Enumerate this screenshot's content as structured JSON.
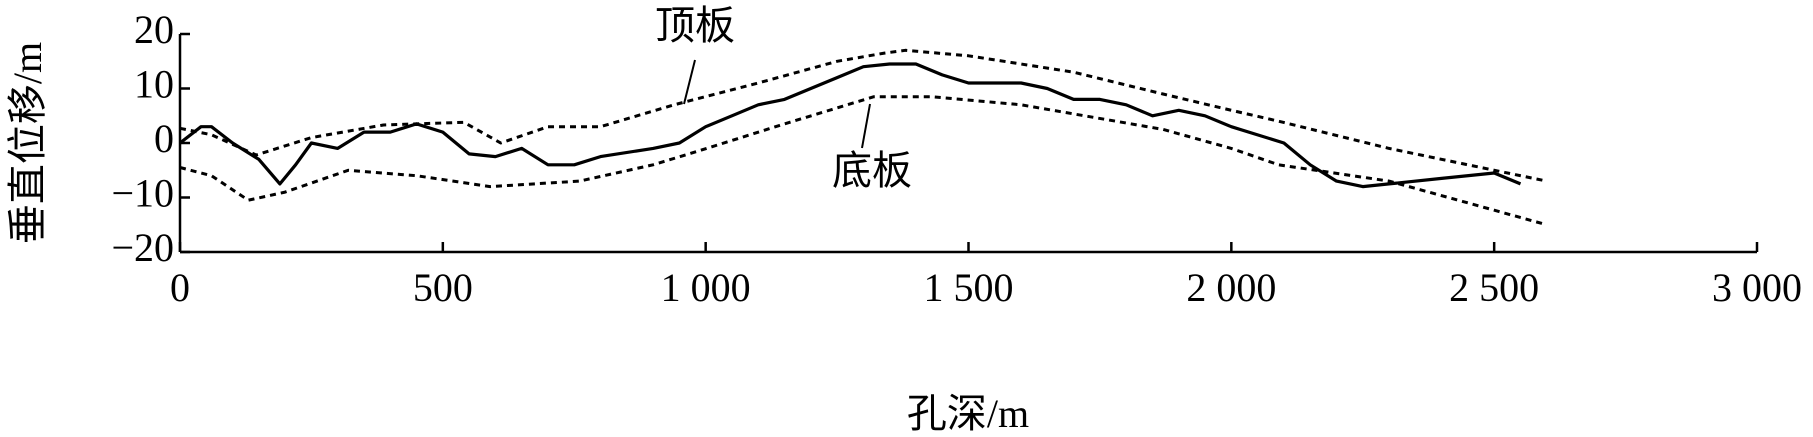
{
  "chart_data": {
    "type": "line",
    "xlabel": "孔深/m",
    "ylabel": "垂直位移/m",
    "xlim": [
      0,
      3000
    ],
    "xticks": [
      0,
      500,
      {
        "value": 1000,
        "label": "1 000"
      },
      {
        "value": 1500,
        "label": "1 500"
      },
      {
        "value": 2000,
        "label": "2 000"
      },
      {
        "value": 2500,
        "label": "2 500"
      },
      {
        "value": 3000,
        "label": "3 000"
      }
    ],
    "ylim": [
      -20,
      20
    ],
    "yticks": [
      {
        "value": -20,
        "label": "−20"
      },
      {
        "value": -10,
        "label": "−10"
      },
      0,
      10,
      20
    ],
    "series": [
      {
        "name": "顶板",
        "color": "#000000",
        "dashed": true,
        "x": [
          0,
          60,
          145,
          250,
          387,
          540,
          610,
          700,
          800,
          940,
          1100,
          1250,
          1340,
          1380,
          1500,
          1700,
          1870,
          2000,
          2090,
          2300,
          2450,
          2600
        ],
        "values": [
          2.7,
          1.5,
          -2.2,
          1,
          3.3,
          3.8,
          0,
          3,
          3,
          7,
          11,
          15,
          16.5,
          17,
          16,
          13,
          9,
          6,
          4,
          -1,
          -4,
          -7
        ]
      },
      {
        "name": "底板",
        "color": "#000000",
        "dashed": true,
        "x": [
          0,
          60,
          130,
          200,
          320,
          450,
          590,
          760,
          900,
          985,
          1150,
          1320,
          1430,
          1600,
          1870,
          2000,
          2090,
          2300,
          2450,
          2600
        ],
        "values": [
          -4.5,
          -6,
          -10.5,
          -9,
          -5,
          -6,
          -8,
          -7,
          -4,
          -1.5,
          3.5,
          8.5,
          8.5,
          7,
          2.5,
          -1,
          -4,
          -7,
          -11,
          -15
        ]
      },
      {
        "color": "#000000",
        "dashed": false,
        "x": [
          0,
          40,
          60,
          100,
          150,
          190,
          220,
          250,
          300,
          350,
          400,
          450,
          500,
          550,
          600,
          650,
          700,
          750,
          800,
          900,
          950,
          1000,
          1050,
          1100,
          1150,
          1200,
          1250,
          1300,
          1350,
          1400,
          1450,
          1500,
          1550,
          1600,
          1650,
          1700,
          1750,
          1800,
          1850,
          1900,
          1950,
          2000,
          2100,
          2150,
          2200,
          2250,
          2300,
          2400,
          2500,
          2550
        ],
        "values": [
          0,
          3,
          3,
          0,
          -3,
          -7.5,
          -4,
          0,
          -1,
          2,
          2,
          3.5,
          2,
          -2,
          -2.5,
          -1,
          -4,
          -4,
          -2.5,
          -1,
          0,
          3,
          5,
          7,
          8,
          10,
          12,
          14,
          14.5,
          14.5,
          12.5,
          11,
          11,
          11,
          10,
          8,
          8,
          7,
          5,
          6,
          5,
          3,
          0,
          -4,
          -7,
          -8,
          -7.5,
          -6.5,
          -5.5,
          -7.5
        ]
      }
    ]
  }
}
